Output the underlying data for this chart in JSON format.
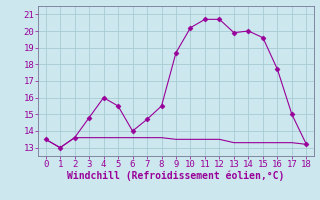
{
  "title": "",
  "xlabel": "Windchill (Refroidissement éolien,°C)",
  "x_upper": [
    0,
    1,
    2,
    3,
    4,
    5,
    6,
    7,
    8,
    9,
    10,
    11,
    12,
    13,
    14,
    15,
    16,
    17,
    18
  ],
  "y_upper": [
    13.5,
    13.0,
    13.6,
    14.8,
    16.0,
    15.5,
    14.0,
    14.7,
    15.5,
    18.7,
    20.2,
    20.7,
    20.7,
    19.9,
    20.0,
    19.6,
    17.7,
    15.0,
    13.2
  ],
  "x_lower": [
    0,
    1,
    2,
    3,
    4,
    5,
    6,
    7,
    8,
    9,
    10,
    11,
    12,
    13,
    14,
    15,
    16,
    17,
    18
  ],
  "y_lower": [
    13.5,
    13.0,
    13.6,
    13.6,
    13.6,
    13.6,
    13.6,
    13.6,
    13.6,
    13.5,
    13.5,
    13.5,
    13.5,
    13.3,
    13.3,
    13.3,
    13.3,
    13.3,
    13.2
  ],
  "line_color": "#990099",
  "marker": "D",
  "markersize": 2.5,
  "ylim": [
    12.5,
    21.5
  ],
  "xlim": [
    -0.5,
    18.5
  ],
  "yticks": [
    13,
    14,
    15,
    16,
    17,
    18,
    19,
    20,
    21
  ],
  "xticks": [
    0,
    1,
    2,
    3,
    4,
    5,
    6,
    7,
    8,
    9,
    10,
    11,
    12,
    13,
    14,
    15,
    16,
    17,
    18
  ],
  "bg_color": "#cce8ee",
  "grid_color": "#a8ccd4",
  "tick_fontsize": 6.5,
  "xlabel_fontsize": 7.0,
  "linewidth": 0.8
}
